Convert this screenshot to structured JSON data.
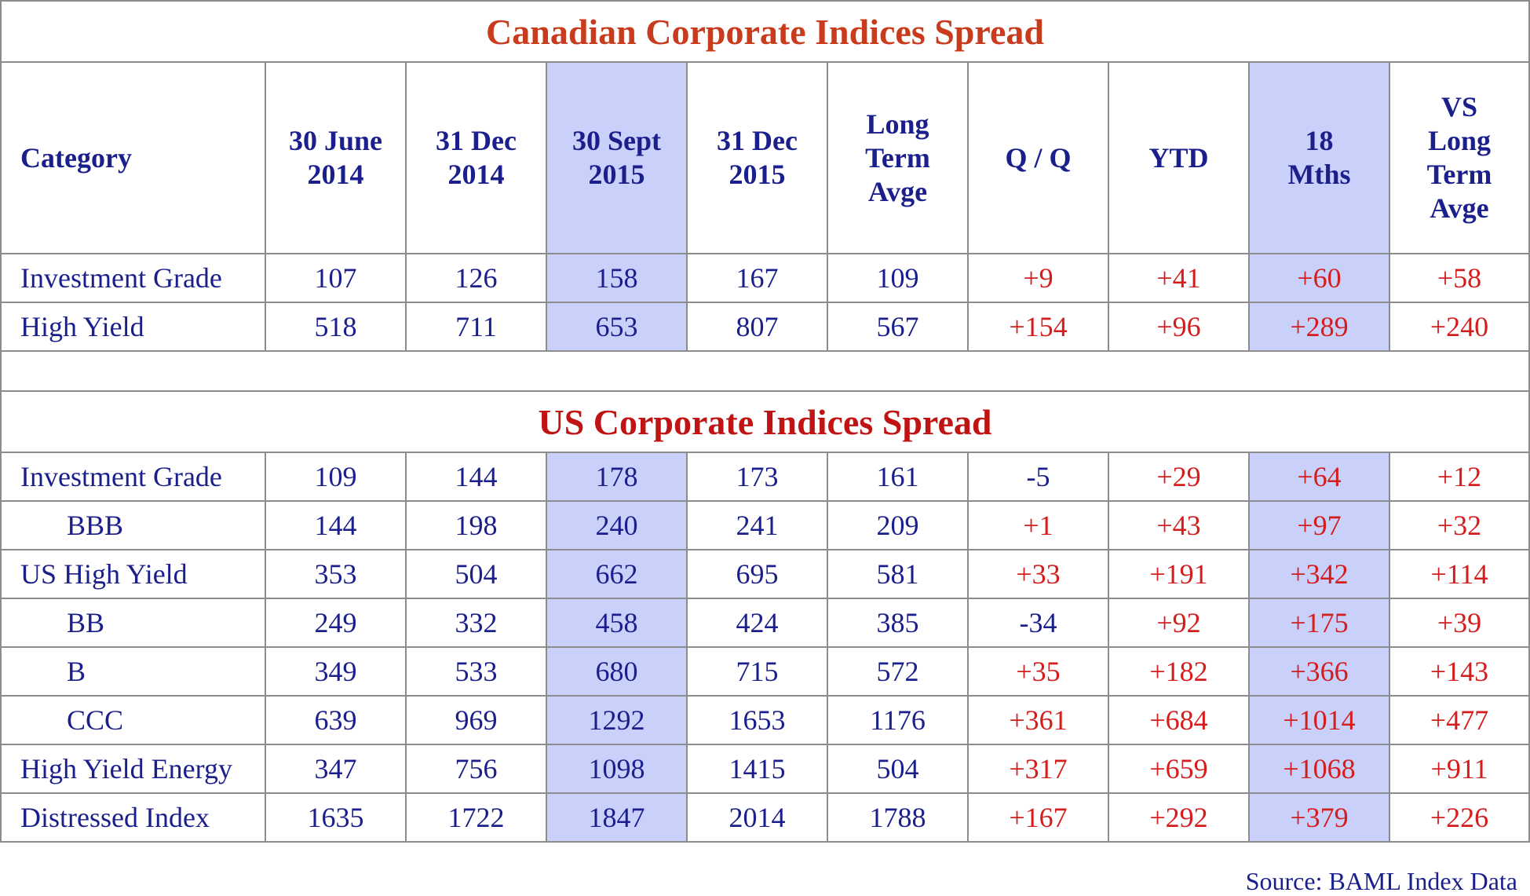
{
  "chart_data": {
    "type": "table",
    "columns": [
      "Category",
      "30 June 2014",
      "31 Dec 2014",
      "30 Sept 2015",
      "31 Dec 2015",
      "Long Term Avge",
      "Q / Q",
      "YTD",
      "18 Mths",
      "VS Long Term Avge"
    ],
    "highlight_columns": [
      "30 Sept 2015",
      "18 Mths"
    ],
    "colors": {
      "border": "#8c8c8c",
      "text": "#1a1f8c",
      "positive_change": "#d41e1e",
      "highlight": "#c9d1fb",
      "canadian_title": "#c83b1c",
      "us_title": "#c01414"
    },
    "sections": [
      {
        "title": "Canadian Corporate Indices Spread",
        "rows": [
          {
            "category": "Investment Grade",
            "indent": false,
            "values": [
              "107",
              "126",
              "158",
              "167",
              "109",
              "+9",
              "+41",
              "+60",
              "+58"
            ]
          },
          {
            "category": "High Yield",
            "indent": false,
            "values": [
              "518",
              "711",
              "653",
              "807",
              "567",
              "+154",
              "+96",
              "+289",
              "+240"
            ]
          }
        ]
      },
      {
        "title": "US Corporate Indices Spread",
        "rows": [
          {
            "category": "Investment Grade",
            "indent": false,
            "values": [
              "109",
              "144",
              "178",
              "173",
              "161",
              "-5",
              "+29",
              "+64",
              "+12"
            ]
          },
          {
            "category": "BBB",
            "indent": true,
            "values": [
              "144",
              "198",
              "240",
              "241",
              "209",
              "+1",
              "+43",
              "+97",
              "+32"
            ]
          },
          {
            "category": "US High Yield",
            "indent": false,
            "values": [
              "353",
              "504",
              "662",
              "695",
              "581",
              "+33",
              "+191",
              "+342",
              "+114"
            ]
          },
          {
            "category": "BB",
            "indent": true,
            "values": [
              "249",
              "332",
              "458",
              "424",
              "385",
              "-34",
              "+92",
              "+175",
              "+39"
            ]
          },
          {
            "category": "B",
            "indent": true,
            "values": [
              "349",
              "533",
              "680",
              "715",
              "572",
              "+35",
              "+182",
              "+366",
              "+143"
            ]
          },
          {
            "category": "CCC",
            "indent": true,
            "values": [
              "639",
              "969",
              "1292",
              "1653",
              "1176",
              "+361",
              "+684",
              "+1014",
              "+477"
            ]
          },
          {
            "category": "High Yield Energy",
            "indent": false,
            "values": [
              "347",
              "756",
              "1098",
              "1415",
              "504",
              "+317",
              "+659",
              "+1068",
              "+911"
            ]
          },
          {
            "category": "Distressed Index",
            "indent": false,
            "values": [
              "1635",
              "1722",
              "1847",
              "2014",
              "1788",
              "+167",
              "+292",
              "+379",
              "+226"
            ]
          }
        ]
      }
    ],
    "source": "Source: BAML Index Data"
  }
}
